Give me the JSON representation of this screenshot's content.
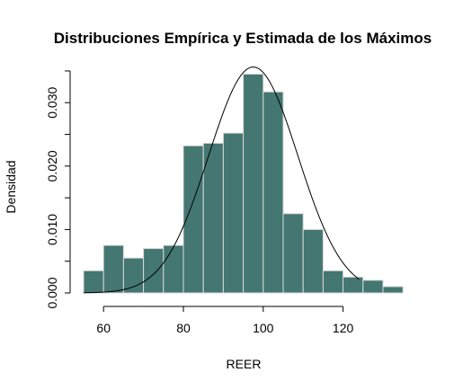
{
  "chart_data": {
    "type": "bar",
    "title": "Distribuciones Empírica y Estimada de los Máximos",
    "xlabel": "REER",
    "ylabel": "Densidad",
    "bar_color": "#447672",
    "bar_edge_color": "#d9d9d9",
    "curve_color": "#000000",
    "bin_width": 5,
    "bins": [
      {
        "start": 55,
        "density": 0.0035
      },
      {
        "start": 60,
        "density": 0.0075
      },
      {
        "start": 65,
        "density": 0.0055
      },
      {
        "start": 70,
        "density": 0.007
      },
      {
        "start": 75,
        "density": 0.0075
      },
      {
        "start": 80,
        "density": 0.0232
      },
      {
        "start": 85,
        "density": 0.0236
      },
      {
        "start": 90,
        "density": 0.0252
      },
      {
        "start": 95,
        "density": 0.0345
      },
      {
        "start": 100,
        "density": 0.0317
      },
      {
        "start": 105,
        "density": 0.0125
      },
      {
        "start": 110,
        "density": 0.01
      },
      {
        "start": 115,
        "density": 0.0035
      },
      {
        "start": 120,
        "density": 0.0025
      },
      {
        "start": 125,
        "density": 0.002
      },
      {
        "start": 130,
        "density": 0.001
      }
    ],
    "curve": {
      "type": "normal",
      "mean": 97.5,
      "sd": 11.2,
      "x_from": 55,
      "x_to": 124
    },
    "xlim": [
      55,
      135
    ],
    "ylim": [
      0,
      0.035
    ],
    "x_ticks": [
      {
        "value": 60,
        "label": "60"
      },
      {
        "value": 80,
        "label": "80"
      },
      {
        "value": 100,
        "label": "100"
      },
      {
        "value": 120,
        "label": "120"
      }
    ],
    "y_ticks": [
      {
        "value": 0,
        "label": "0.000"
      },
      {
        "value": 0.01,
        "label": "0.010"
      },
      {
        "value": 0.02,
        "label": "0.020"
      },
      {
        "value": 0.03,
        "label": "0.030"
      }
    ],
    "y_minor_ticks": [
      0.005,
      0.015,
      0.025,
      0.035
    ],
    "grid": false,
    "legend": "none"
  }
}
